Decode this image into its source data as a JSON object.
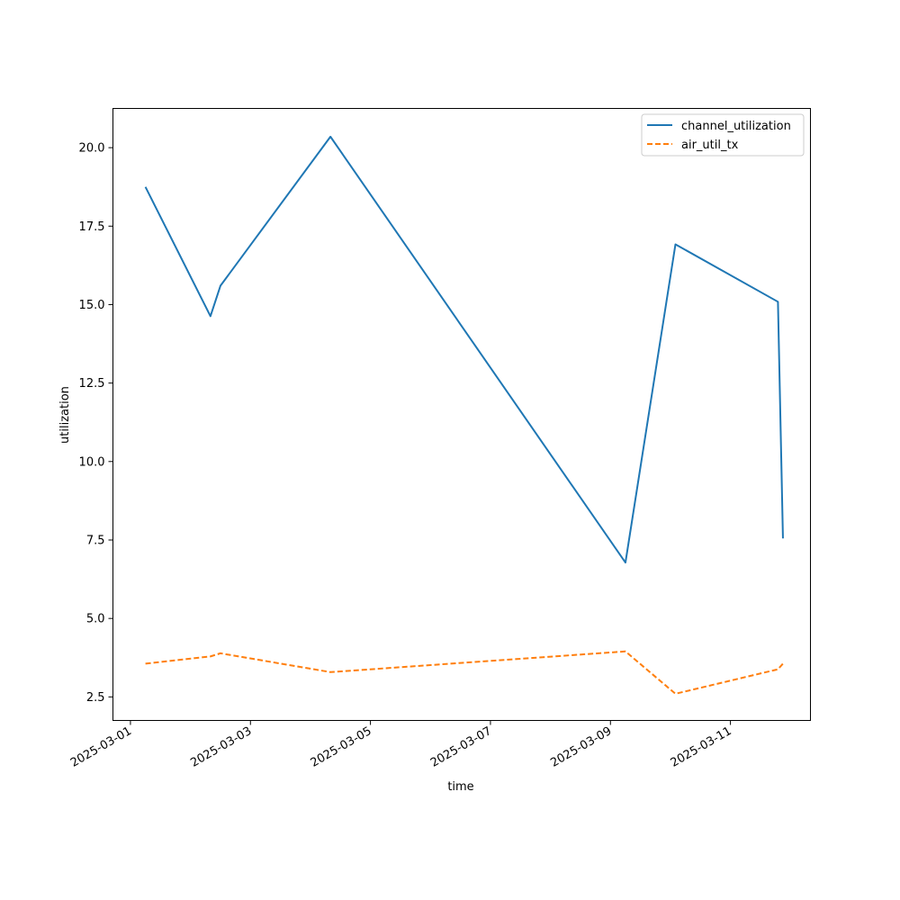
{
  "chart_data": {
    "type": "line",
    "title": "",
    "xlabel": "time",
    "ylabel": "utilization",
    "x_axis_type": "datetime",
    "xlim": [
      "2025-03-00 17:00",
      "2025-03-12 08:00"
    ],
    "ylim": [
      1.75,
      21.25
    ],
    "x_ticks": [
      "2025-03-01",
      "2025-03-03",
      "2025-03-05",
      "2025-03-07",
      "2025-03-09",
      "2025-03-11"
    ],
    "y_ticks": [
      "2.5",
      "5.0",
      "7.5",
      "10.0",
      "12.5",
      "15.0",
      "17.5",
      "20.0"
    ],
    "grid": false,
    "legend_position": "upper right",
    "series": [
      {
        "name": "channel_utilization",
        "color": "#1f77b4",
        "style": "solid",
        "points": [
          {
            "x": "2025-03-01 06:00",
            "y": 18.75
          },
          {
            "x": "2025-03-02 08:00",
            "y": 14.63
          },
          {
            "x": "2025-03-02 12:00",
            "y": 15.6
          },
          {
            "x": "2025-03-04 08:00",
            "y": 20.35
          },
          {
            "x": "2025-03-09 06:00",
            "y": 6.78
          },
          {
            "x": "2025-03-10 02:00",
            "y": 16.92
          },
          {
            "x": "2025-03-11 19:00",
            "y": 15.09
          },
          {
            "x": "2025-03-11 21:00",
            "y": 7.55
          }
        ]
      },
      {
        "name": "air_util_tx",
        "color": "#ff7f0e",
        "style": "dashed",
        "points": [
          {
            "x": "2025-03-01 06:00",
            "y": 3.56
          },
          {
            "x": "2025-03-02 08:00",
            "y": 3.79
          },
          {
            "x": "2025-03-02 12:00",
            "y": 3.89
          },
          {
            "x": "2025-03-04 08:00",
            "y": 3.29
          },
          {
            "x": "2025-03-09 06:00",
            "y": 3.95
          },
          {
            "x": "2025-03-10 02:00",
            "y": 2.6
          },
          {
            "x": "2025-03-11 19:00",
            "y": 3.38
          },
          {
            "x": "2025-03-11 21:00",
            "y": 3.56
          }
        ]
      }
    ]
  }
}
